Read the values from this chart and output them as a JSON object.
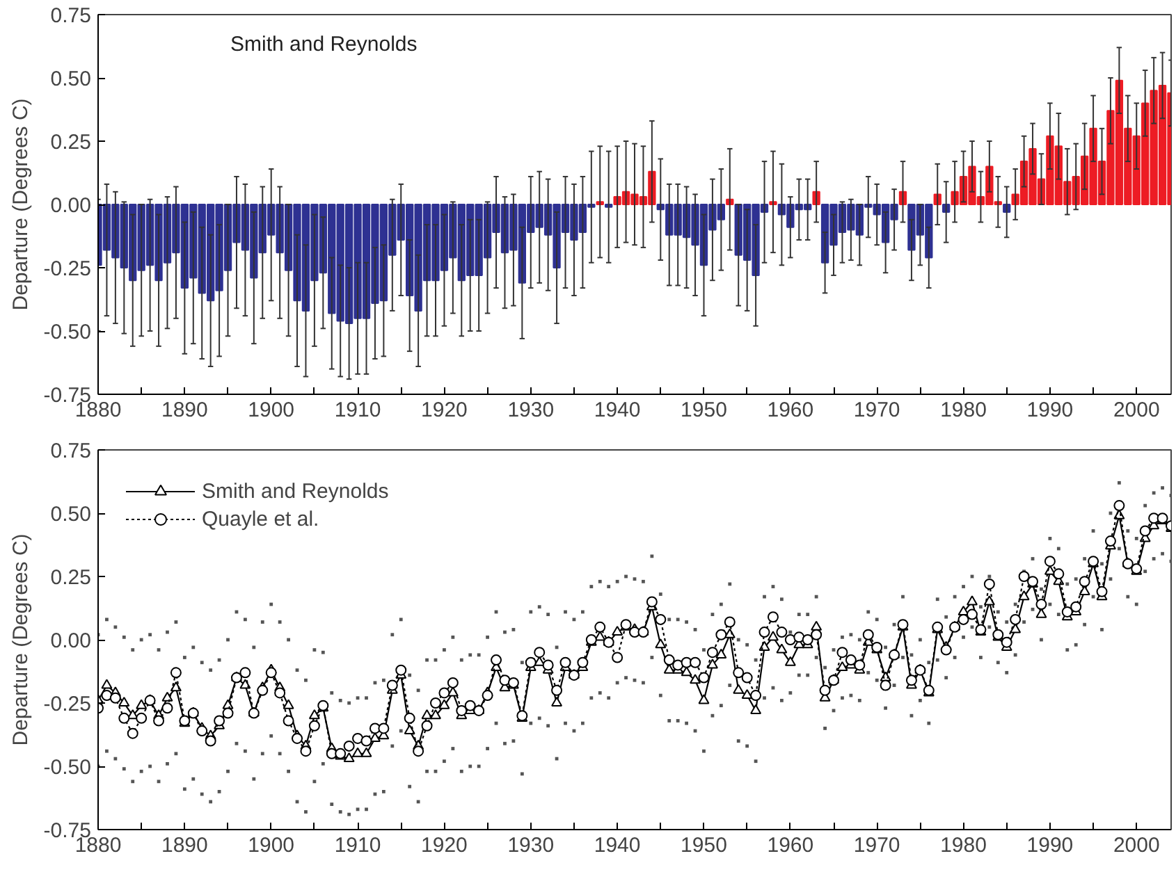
{
  "chart_data": [
    {
      "type": "bar",
      "annotations": [
        "Smith and Reynolds"
      ],
      "ylabel": "Departure (Degrees C)",
      "grid": false,
      "x": [
        1880,
        1881,
        1882,
        1883,
        1884,
        1885,
        1886,
        1887,
        1888,
        1889,
        1890,
        1891,
        1892,
        1893,
        1894,
        1895,
        1896,
        1897,
        1898,
        1899,
        1900,
        1901,
        1902,
        1903,
        1904,
        1905,
        1906,
        1907,
        1908,
        1909,
        1910,
        1911,
        1912,
        1913,
        1914,
        1915,
        1916,
        1917,
        1918,
        1919,
        1920,
        1921,
        1922,
        1923,
        1924,
        1925,
        1926,
        1927,
        1928,
        1929,
        1930,
        1931,
        1932,
        1933,
        1934,
        1935,
        1936,
        1937,
        1938,
        1939,
        1940,
        1941,
        1942,
        1943,
        1944,
        1945,
        1946,
        1947,
        1948,
        1949,
        1950,
        1951,
        1952,
        1953,
        1954,
        1955,
        1956,
        1957,
        1958,
        1959,
        1960,
        1961,
        1962,
        1963,
        1964,
        1965,
        1966,
        1967,
        1968,
        1969,
        1970,
        1971,
        1972,
        1973,
        1974,
        1975,
        1976,
        1977,
        1978,
        1979,
        1980,
        1981,
        1982,
        1983,
        1984,
        1985,
        1986,
        1987,
        1988,
        1989,
        1990,
        1991,
        1992,
        1993,
        1994,
        1995,
        1996,
        1997,
        1998,
        1999,
        2000,
        2001,
        2002,
        2003,
        2004
      ],
      "values": [
        -0.24,
        -0.18,
        -0.21,
        -0.25,
        -0.3,
        -0.26,
        -0.24,
        -0.3,
        -0.23,
        -0.19,
        -0.33,
        -0.29,
        -0.35,
        -0.38,
        -0.34,
        -0.26,
        -0.15,
        -0.18,
        -0.29,
        -0.19,
        -0.12,
        -0.19,
        -0.26,
        -0.38,
        -0.42,
        -0.3,
        -0.27,
        -0.43,
        -0.46,
        -0.47,
        -0.45,
        -0.45,
        -0.39,
        -0.38,
        -0.2,
        -0.14,
        -0.36,
        -0.42,
        -0.3,
        -0.3,
        -0.26,
        -0.21,
        -0.3,
        -0.28,
        -0.28,
        -0.21,
        -0.11,
        -0.19,
        -0.18,
        -0.31,
        -0.11,
        -0.09,
        -0.12,
        -0.25,
        -0.11,
        -0.14,
        -0.11,
        -0.01,
        0.01,
        -0.01,
        0.03,
        0.05,
        0.04,
        0.03,
        0.13,
        -0.02,
        -0.12,
        -0.12,
        -0.13,
        -0.16,
        -0.24,
        -0.1,
        -0.06,
        0.02,
        -0.2,
        -0.22,
        -0.28,
        -0.03,
        0.01,
        -0.04,
        -0.09,
        -0.02,
        -0.02,
        0.05,
        -0.23,
        -0.16,
        -0.11,
        -0.1,
        -0.12,
        -0.01,
        -0.04,
        -0.15,
        -0.06,
        0.05,
        -0.18,
        -0.12,
        -0.21,
        0.04,
        -0.03,
        0.05,
        0.11,
        0.15,
        0.03,
        0.15,
        0.01,
        -0.03,
        0.04,
        0.17,
        0.22,
        0.1,
        0.27,
        0.23,
        0.09,
        0.11,
        0.19,
        0.3,
        0.17,
        0.37,
        0.49,
        0.3,
        0.27,
        0.4,
        0.45,
        0.47,
        0.44
      ],
      "colors": [
        "#2e3192",
        "#2e3192",
        "#2e3192",
        "#2e3192",
        "#2e3192",
        "#2e3192",
        "#2e3192",
        "#2e3192",
        "#2e3192",
        "#2e3192",
        "#2e3192",
        "#2e3192",
        "#2e3192",
        "#2e3192",
        "#2e3192",
        "#2e3192",
        "#2e3192",
        "#2e3192",
        "#2e3192",
        "#2e3192",
        "#2e3192",
        "#2e3192",
        "#2e3192",
        "#2e3192",
        "#2e3192",
        "#2e3192",
        "#2e3192",
        "#2e3192",
        "#2e3192",
        "#2e3192",
        "#2e3192",
        "#2e3192",
        "#2e3192",
        "#2e3192",
        "#2e3192",
        "#2e3192",
        "#2e3192",
        "#2e3192",
        "#2e3192",
        "#2e3192",
        "#2e3192",
        "#2e3192",
        "#2e3192",
        "#2e3192",
        "#2e3192",
        "#2e3192",
        "#2e3192",
        "#2e3192",
        "#2e3192",
        "#2e3192",
        "#2e3192",
        "#2e3192",
        "#2e3192",
        "#2e3192",
        "#2e3192",
        "#2e3192",
        "#2e3192",
        "#2e3192",
        "#ed1c24",
        "#2e3192",
        "#ed1c24",
        "#ed1c24",
        "#ed1c24",
        "#ed1c24",
        "#ed1c24",
        "#2e3192",
        "#2e3192",
        "#2e3192",
        "#2e3192",
        "#2e3192",
        "#2e3192",
        "#2e3192",
        "#2e3192",
        "#ed1c24",
        "#2e3192",
        "#2e3192",
        "#2e3192",
        "#2e3192",
        "#ed1c24",
        "#2e3192",
        "#2e3192",
        "#2e3192",
        "#2e3192",
        "#ed1c24",
        "#2e3192",
        "#2e3192",
        "#2e3192",
        "#2e3192",
        "#2e3192",
        "#2e3192",
        "#2e3192",
        "#2e3192",
        "#2e3192",
        "#ed1c24",
        "#2e3192",
        "#2e3192",
        "#2e3192",
        "#ed1c24",
        "#2e3192",
        "#ed1c24",
        "#ed1c24",
        "#ed1c24",
        "#ed1c24",
        "#ed1c24",
        "#ed1c24",
        "#2e3192",
        "#ed1c24",
        "#ed1c24",
        "#ed1c24",
        "#ed1c24",
        "#ed1c24",
        "#ed1c24",
        "#ed1c24",
        "#ed1c24",
        "#ed1c24",
        "#ed1c24",
        "#ed1c24",
        "#ed1c24",
        "#ed1c24",
        "#ed1c24",
        "#ed1c24",
        "#ed1c24",
        "#ed1c24",
        "#ed1c24",
        "#ed1c24"
      ],
      "errors": [
        0.26,
        0.26,
        0.26,
        0.26,
        0.26,
        0.26,
        0.26,
        0.26,
        0.26,
        0.26,
        0.26,
        0.26,
        0.26,
        0.26,
        0.26,
        0.26,
        0.26,
        0.26,
        0.26,
        0.26,
        0.26,
        0.26,
        0.26,
        0.26,
        0.26,
        0.26,
        0.22,
        0.22,
        0.22,
        0.22,
        0.22,
        0.22,
        0.22,
        0.22,
        0.22,
        0.22,
        0.22,
        0.22,
        0.22,
        0.22,
        0.22,
        0.22,
        0.22,
        0.22,
        0.22,
        0.22,
        0.22,
        0.22,
        0.22,
        0.22,
        0.22,
        0.22,
        0.22,
        0.22,
        0.22,
        0.22,
        0.22,
        0.22,
        0.22,
        0.22,
        0.2,
        0.2,
        0.2,
        0.2,
        0.2,
        0.2,
        0.2,
        0.2,
        0.2,
        0.2,
        0.2,
        0.2,
        0.2,
        0.2,
        0.2,
        0.2,
        0.2,
        0.2,
        0.2,
        0.2,
        0.12,
        0.12,
        0.12,
        0.12,
        0.12,
        0.12,
        0.12,
        0.12,
        0.12,
        0.12,
        0.12,
        0.12,
        0.12,
        0.12,
        0.12,
        0.12,
        0.12,
        0.12,
        0.12,
        0.12,
        0.1,
        0.1,
        0.1,
        0.1,
        0.1,
        0.1,
        0.1,
        0.1,
        0.1,
        0.1,
        0.13,
        0.13,
        0.13,
        0.13,
        0.13,
        0.13,
        0.13,
        0.13,
        0.13,
        0.13,
        0.13,
        0.13,
        0.13,
        0.13,
        0.13
      ],
      "xlim": [
        1880,
        2004
      ],
      "ylim": [
        -0.75,
        0.75
      ],
      "xticks": [
        1880,
        {
          "value": 1885,
          "label": null
        },
        1890,
        {
          "value": 1895,
          "label": null
        },
        1900,
        {
          "value": 1905,
          "label": null
        },
        1910,
        {
          "value": 1915,
          "label": null
        },
        1920,
        {
          "value": 1925,
          "label": null
        },
        1930,
        {
          "value": 1935,
          "label": null
        },
        1940,
        {
          "value": 1945,
          "label": null
        },
        1950,
        {
          "value": 1955,
          "label": null
        },
        1960,
        {
          "value": 1965,
          "label": null
        },
        1970,
        {
          "value": 1975,
          "label": null
        },
        1980,
        {
          "value": 1985,
          "label": null
        },
        1990,
        {
          "value": 1995,
          "label": null
        },
        2000
      ],
      "yticks": [
        {
          "value": -0.75,
          "label": "-0.75"
        },
        {
          "value": -0.5,
          "label": "-0.50"
        },
        {
          "value": -0.25,
          "label": "-0.25"
        },
        {
          "value": 0,
          "label": "0.00"
        },
        {
          "value": 0.25,
          "label": "0.25"
        },
        {
          "value": 0.5,
          "label": "0.50"
        },
        {
          "value": 0.75,
          "label": "0.75"
        }
      ]
    },
    {
      "type": "line",
      "ylabel": "Departure (Degrees C)",
      "grid": false,
      "legend": "top left",
      "x": [
        1880,
        1881,
        1882,
        1883,
        1884,
        1885,
        1886,
        1887,
        1888,
        1889,
        1890,
        1891,
        1892,
        1893,
        1894,
        1895,
        1896,
        1897,
        1898,
        1899,
        1900,
        1901,
        1902,
        1903,
        1904,
        1905,
        1906,
        1907,
        1908,
        1909,
        1910,
        1911,
        1912,
        1913,
        1914,
        1915,
        1916,
        1917,
        1918,
        1919,
        1920,
        1921,
        1922,
        1923,
        1924,
        1925,
        1926,
        1927,
        1928,
        1929,
        1930,
        1931,
        1932,
        1933,
        1934,
        1935,
        1936,
        1937,
        1938,
        1939,
        1940,
        1941,
        1942,
        1943,
        1944,
        1945,
        1946,
        1947,
        1948,
        1949,
        1950,
        1951,
        1952,
        1953,
        1954,
        1955,
        1956,
        1957,
        1958,
        1959,
        1960,
        1961,
        1962,
        1963,
        1964,
        1965,
        1966,
        1967,
        1968,
        1969,
        1970,
        1971,
        1972,
        1973,
        1974,
        1975,
        1976,
        1977,
        1978,
        1979,
        1980,
        1981,
        1982,
        1983,
        1984,
        1985,
        1986,
        1987,
        1988,
        1989,
        1990,
        1991,
        1992,
        1993,
        1994,
        1995,
        1996,
        1997,
        1998,
        1999,
        2000,
        2001,
        2002,
        2003,
        2004
      ],
      "series": [
        {
          "name": "Smith and Reynolds",
          "color": "#000000",
          "marker": "triangle",
          "line_style": "solid",
          "values": [
            -0.24,
            -0.18,
            -0.21,
            -0.25,
            -0.3,
            -0.26,
            -0.24,
            -0.3,
            -0.23,
            -0.19,
            -0.33,
            -0.29,
            -0.35,
            -0.38,
            -0.34,
            -0.26,
            -0.15,
            -0.18,
            -0.29,
            -0.19,
            -0.12,
            -0.19,
            -0.26,
            -0.38,
            -0.42,
            -0.3,
            -0.27,
            -0.43,
            -0.46,
            -0.47,
            -0.45,
            -0.45,
            -0.39,
            -0.38,
            -0.2,
            -0.14,
            -0.36,
            -0.42,
            -0.3,
            -0.3,
            -0.26,
            -0.21,
            -0.3,
            -0.28,
            -0.28,
            -0.21,
            -0.11,
            -0.19,
            -0.18,
            -0.31,
            -0.11,
            -0.09,
            -0.12,
            -0.25,
            -0.11,
            -0.14,
            -0.11,
            -0.01,
            0.01,
            -0.01,
            0.03,
            0.05,
            0.04,
            0.03,
            0.13,
            -0.02,
            -0.12,
            -0.12,
            -0.13,
            -0.16,
            -0.24,
            -0.1,
            -0.06,
            0.02,
            -0.2,
            -0.22,
            -0.28,
            -0.03,
            0.01,
            -0.04,
            -0.09,
            -0.02,
            -0.02,
            0.05,
            -0.23,
            -0.16,
            -0.11,
            -0.1,
            -0.12,
            -0.01,
            -0.04,
            -0.15,
            -0.06,
            0.05,
            -0.18,
            -0.12,
            -0.21,
            0.04,
            -0.03,
            0.05,
            0.11,
            0.15,
            0.03,
            0.15,
            0.01,
            -0.03,
            0.04,
            0.17,
            0.22,
            0.1,
            0.27,
            0.23,
            0.09,
            0.11,
            0.19,
            0.3,
            0.17,
            0.37,
            0.49,
            0.3,
            0.27,
            0.4,
            0.45,
            0.47,
            0.44
          ]
        },
        {
          "type": "scatter",
          "color": "#555555",
          "marker": "square",
          "values": [
            0.02,
            0.08,
            0.05,
            0.01,
            -0.04,
            0.0,
            0.02,
            -0.04,
            0.03,
            0.07,
            -0.07,
            -0.03,
            -0.09,
            -0.12,
            -0.08,
            0.0,
            0.11,
            0.08,
            -0.03,
            0.07,
            0.14,
            0.07,
            0.0,
            -0.12,
            -0.16,
            -0.04,
            -0.05,
            -0.21,
            -0.24,
            -0.25,
            -0.23,
            -0.23,
            -0.17,
            -0.16,
            0.02,
            0.08,
            -0.14,
            -0.2,
            -0.08,
            -0.08,
            -0.04,
            0.01,
            -0.08,
            -0.06,
            -0.06,
            0.01,
            0.11,
            0.03,
            0.04,
            -0.09,
            0.11,
            0.13,
            0.1,
            -0.03,
            0.11,
            0.08,
            0.11,
            0.21,
            0.23,
            0.21,
            0.23,
            0.25,
            0.24,
            0.23,
            0.33,
            0.18,
            0.08,
            0.08,
            0.07,
            0.04,
            -0.04,
            0.1,
            0.14,
            0.22,
            0.0,
            -0.02,
            -0.08,
            0.17,
            0.21,
            0.16,
            0.03,
            0.1,
            0.1,
            0.17,
            -0.11,
            -0.04,
            0.01,
            0.02,
            0.0,
            0.11,
            0.08,
            -0.03,
            0.06,
            0.17,
            -0.06,
            0.0,
            -0.09,
            0.16,
            0.09,
            0.17,
            0.21,
            0.25,
            0.13,
            0.25,
            0.11,
            0.07,
            0.14,
            0.27,
            0.32,
            0.2,
            0.4,
            0.36,
            0.22,
            0.24,
            0.32,
            0.43,
            0.3,
            0.5,
            0.62,
            0.43,
            0.4,
            0.53,
            0.58,
            0.6,
            0.57
          ]
        },
        {
          "type": "scatter",
          "color": "#555555",
          "marker": "square",
          "values": [
            -0.5,
            -0.44,
            -0.47,
            -0.51,
            -0.56,
            -0.52,
            -0.5,
            -0.56,
            -0.49,
            -0.45,
            -0.59,
            -0.55,
            -0.61,
            -0.64,
            -0.6,
            -0.52,
            -0.41,
            -0.44,
            -0.55,
            -0.45,
            -0.38,
            -0.45,
            -0.52,
            -0.64,
            -0.68,
            -0.56,
            -0.49,
            -0.65,
            -0.68,
            -0.69,
            -0.67,
            -0.67,
            -0.61,
            -0.6,
            -0.42,
            -0.36,
            -0.58,
            -0.64,
            -0.52,
            -0.52,
            -0.48,
            -0.43,
            -0.52,
            -0.5,
            -0.5,
            -0.43,
            -0.33,
            -0.41,
            -0.4,
            -0.53,
            -0.33,
            -0.31,
            -0.34,
            -0.47,
            -0.33,
            -0.36,
            -0.33,
            -0.23,
            -0.21,
            -0.23,
            -0.17,
            -0.15,
            -0.16,
            -0.17,
            -0.07,
            -0.22,
            -0.32,
            -0.32,
            -0.33,
            -0.36,
            -0.44,
            -0.3,
            -0.26,
            -0.18,
            -0.4,
            -0.42,
            -0.48,
            -0.23,
            -0.19,
            -0.24,
            -0.21,
            -0.14,
            -0.14,
            -0.07,
            -0.35,
            -0.28,
            -0.23,
            -0.22,
            -0.24,
            -0.13,
            -0.16,
            -0.27,
            -0.18,
            -0.07,
            -0.3,
            -0.24,
            -0.33,
            -0.08,
            -0.15,
            -0.07,
            0.01,
            0.05,
            -0.07,
            0.05,
            -0.09,
            -0.13,
            -0.06,
            0.07,
            0.12,
            0.0,
            0.14,
            0.1,
            -0.04,
            -0.02,
            0.06,
            0.17,
            0.04,
            0.24,
            0.36,
            0.17,
            0.14,
            0.27,
            0.32,
            0.34,
            0.31
          ]
        },
        {
          "name": "Quayle et al.",
          "color": "#000000",
          "marker": "circle",
          "line_style": "dotted",
          "values": [
            -0.27,
            -0.22,
            -0.23,
            -0.31,
            -0.37,
            -0.31,
            -0.24,
            -0.32,
            -0.27,
            -0.13,
            -0.32,
            -0.29,
            -0.36,
            -0.4,
            -0.32,
            -0.29,
            -0.15,
            -0.13,
            -0.29,
            -0.2,
            -0.13,
            -0.21,
            -0.32,
            -0.39,
            -0.44,
            -0.34,
            -0.26,
            -0.45,
            -0.45,
            -0.42,
            -0.39,
            -0.4,
            -0.35,
            -0.35,
            -0.18,
            -0.12,
            -0.31,
            -0.44,
            -0.34,
            -0.25,
            -0.21,
            -0.17,
            -0.28,
            -0.26,
            -0.28,
            -0.22,
            -0.08,
            -0.16,
            -0.17,
            -0.3,
            -0.09,
            -0.05,
            -0.1,
            -0.2,
            -0.09,
            -0.14,
            -0.09,
            0.0,
            0.05,
            -0.01,
            -0.07,
            0.06,
            0.03,
            0.03,
            0.15,
            0.08,
            -0.08,
            -0.1,
            -0.09,
            -0.09,
            -0.15,
            -0.05,
            0.02,
            0.07,
            -0.13,
            -0.15,
            -0.22,
            0.03,
            0.09,
            0.03,
            0.0,
            0.01,
            0.0,
            0.02,
            -0.2,
            -0.16,
            -0.05,
            -0.08,
            -0.1,
            0.02,
            -0.03,
            -0.18,
            -0.06,
            0.06,
            -0.16,
            -0.12,
            -0.2,
            0.05,
            -0.04,
            0.05,
            0.08,
            0.1,
            0.04,
            0.22,
            0.02,
            -0.01,
            0.08,
            0.25,
            0.23,
            0.14,
            0.31,
            0.26,
            0.11,
            0.13,
            0.23,
            0.31,
            0.19,
            0.39,
            0.53,
            0.3,
            0.28,
            0.43,
            0.48,
            0.48,
            0.45
          ]
        }
      ],
      "xlim": [
        1880,
        2004
      ],
      "ylim": [
        -0.75,
        0.75
      ],
      "xticks": [
        1880,
        {
          "value": 1885,
          "label": null
        },
        1890,
        {
          "value": 1895,
          "label": null
        },
        1900,
        {
          "value": 1905,
          "label": null
        },
        1910,
        {
          "value": 1915,
          "label": null
        },
        1920,
        {
          "value": 1925,
          "label": null
        },
        1930,
        {
          "value": 1935,
          "label": null
        },
        1940,
        {
          "value": 1945,
          "label": null
        },
        1950,
        {
          "value": 1955,
          "label": null
        },
        1960,
        {
          "value": 1965,
          "label": null
        },
        1970,
        {
          "value": 1975,
          "label": null
        },
        1980,
        {
          "value": 1985,
          "label": null
        },
        1990,
        {
          "value": 1995,
          "label": null
        },
        2000
      ],
      "yticks": [
        {
          "value": -0.75,
          "label": "-0.75"
        },
        {
          "value": -0.5,
          "label": "-0.50"
        },
        {
          "value": -0.25,
          "label": "-0.25"
        },
        {
          "value": 0,
          "label": "0.00"
        },
        {
          "value": 0.25,
          "label": "0.25"
        },
        {
          "value": 0.5,
          "label": "0.50"
        },
        {
          "value": 0.75,
          "label": "0.75"
        }
      ]
    }
  ]
}
